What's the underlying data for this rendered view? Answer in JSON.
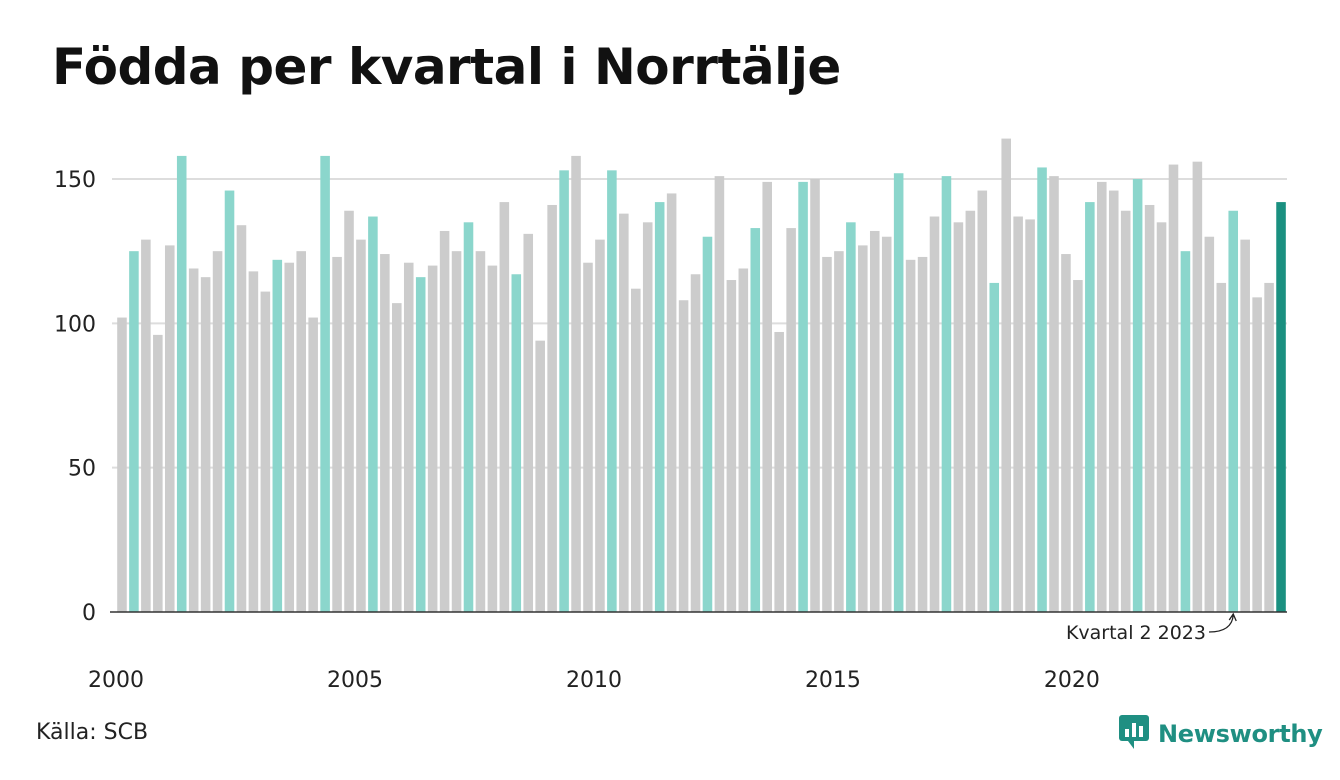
{
  "title": "Födda per kvartal i Norrtälje",
  "source": "Källa: SCB",
  "brand": {
    "name": "Newsworthy",
    "icon": "newsworthy-logo-icon"
  },
  "colors": {
    "bar_default": "#cccccc",
    "bar_q2": "#8bd6cc",
    "bar_highlight": "#1a9080",
    "gridline": "#dddddd",
    "axis": "#333333",
    "brand": "#1f8f82"
  },
  "annotation": {
    "text": "Kvartal 2 2023"
  },
  "chart_data": {
    "type": "bar",
    "title": "Födda per kvartal i Norrtälje",
    "xlabel": "",
    "ylabel": "",
    "ylim": [
      0,
      165
    ],
    "y_ticks": [
      0,
      50,
      100,
      150
    ],
    "x_tick_labels": [
      "2000",
      "2005",
      "2010",
      "2015",
      "2020"
    ],
    "grid": true,
    "start_year": 2000,
    "quarters_per_year": 4,
    "highlight_quarter": 2,
    "highlight_last": true,
    "values": [
      102,
      125,
      129,
      96,
      127,
      158,
      119,
      116,
      125,
      146,
      134,
      118,
      111,
      122,
      121,
      125,
      102,
      158,
      123,
      139,
      129,
      137,
      124,
      107,
      121,
      116,
      120,
      132,
      125,
      135,
      125,
      120,
      142,
      117,
      131,
      94,
      141,
      153,
      158,
      121,
      129,
      153,
      138,
      112,
      135,
      142,
      145,
      108,
      117,
      130,
      151,
      115,
      119,
      133,
      149,
      97,
      133,
      149,
      150,
      123,
      125,
      135,
      127,
      132,
      130,
      152,
      122,
      123,
      137,
      151,
      135,
      139,
      146,
      114,
      164,
      137,
      136,
      154,
      151,
      124,
      115,
      142,
      149,
      146,
      139,
      150,
      141,
      135,
      155,
      125,
      156,
      130,
      114,
      139,
      129,
      109,
      114,
      142
    ]
  }
}
